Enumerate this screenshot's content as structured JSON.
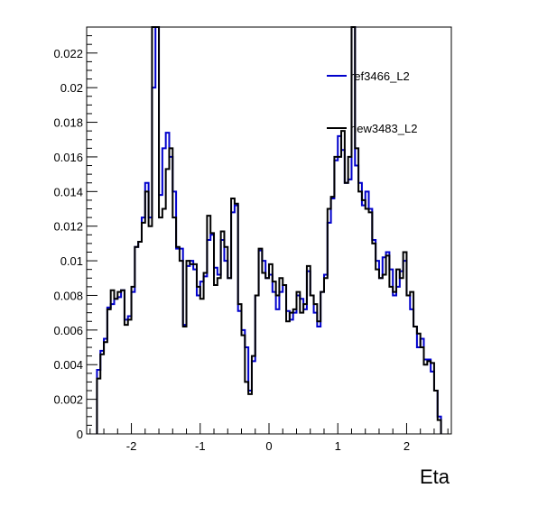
{
  "chart_data": {
    "type": "line",
    "xlabel": "Eta",
    "ylabel": "",
    "xlim": [
      -2.65,
      2.65
    ],
    "ylim": [
      0,
      0.0235
    ],
    "grid": false,
    "legend_position": "top-right",
    "x_ticks": [
      -2,
      -1,
      0,
      1,
      2
    ],
    "x_tick_labels": [
      "-2",
      "-1",
      "0",
      "1",
      "2"
    ],
    "y_ticks": [
      0,
      0.002,
      0.004,
      0.006,
      0.008,
      0.01,
      0.012,
      0.014,
      0.016,
      0.018,
      0.02,
      0.022
    ],
    "y_tick_labels": [
      "0",
      "0.002",
      "0.004",
      "0.006",
      "0.008",
      "0.01",
      "0.012",
      "0.014",
      "0.016",
      "0.018",
      "0.02",
      "0.022"
    ],
    "bins": {
      "start": -2.5,
      "width": 0.05,
      "count": 100
    },
    "series": [
      {
        "name": "ref3466_L2",
        "color": "#0000cc",
        "values": [
          0.0037,
          0.0048,
          0.0055,
          0.0073,
          0.0075,
          0.0078,
          0.0079,
          0.0083,
          0.0066,
          0.0068,
          0.0082,
          0.0108,
          0.0111,
          0.0125,
          0.0145,
          0.0125,
          0.02,
          0.0235,
          0.0138,
          0.0165,
          0.0174,
          0.016,
          0.014,
          0.0107,
          0.0107,
          0.0063,
          0.0097,
          0.01,
          0.0095,
          0.008,
          0.0088,
          0.0091,
          0.0112,
          0.0115,
          0.0096,
          0.0092,
          0.0112,
          0.01,
          0.009,
          0.0128,
          0.0132,
          0.0071,
          0.006,
          0.005,
          0.0025,
          0.0042,
          0.008,
          0.0106,
          0.01,
          0.009,
          0.0092,
          0.0082,
          0.0072,
          0.0082,
          0.0086,
          0.0071,
          0.0066,
          0.007,
          0.008,
          0.0078,
          0.0072,
          0.0094,
          0.008,
          0.007,
          0.0062,
          0.0082,
          0.0092,
          0.0122,
          0.0136,
          0.0158,
          0.0172,
          0.0164,
          0.0145,
          0.0147,
          0.0235,
          0.0155,
          0.0145,
          0.0132,
          0.014,
          0.013,
          0.0112,
          0.01,
          0.009,
          0.0102,
          0.0105,
          0.0095,
          0.008,
          0.0085,
          0.0094,
          0.01,
          0.008,
          0.0072,
          0.0062,
          0.005,
          0.0055,
          0.0043,
          0.0043,
          0.0036,
          0.0025,
          0.001
        ]
      },
      {
        "name": "new3483_L2",
        "color": "#000000",
        "values": [
          0.0032,
          0.0046,
          0.0053,
          0.0072,
          0.0083,
          0.0078,
          0.0082,
          0.0083,
          0.0063,
          0.0066,
          0.0085,
          0.0108,
          0.0111,
          0.0122,
          0.014,
          0.012,
          0.0235,
          0.0235,
          0.0125,
          0.013,
          0.0153,
          0.0165,
          0.0125,
          0.0108,
          0.01,
          0.0062,
          0.01,
          0.0098,
          0.0098,
          0.0085,
          0.0078,
          0.0093,
          0.0126,
          0.0116,
          0.0086,
          0.009,
          0.0117,
          0.0108,
          0.009,
          0.0136,
          0.0133,
          0.0075,
          0.0057,
          0.003,
          0.0023,
          0.0045,
          0.008,
          0.0107,
          0.0093,
          0.009,
          0.0098,
          0.0088,
          0.008,
          0.009,
          0.0086,
          0.0065,
          0.007,
          0.0072,
          0.0082,
          0.007,
          0.0075,
          0.0097,
          0.008,
          0.0075,
          0.0065,
          0.0082,
          0.009,
          0.013,
          0.0137,
          0.016,
          0.016,
          0.0175,
          0.0145,
          0.016,
          0.0235,
          0.0165,
          0.014,
          0.0135,
          0.013,
          0.0128,
          0.011,
          0.0095,
          0.009,
          0.0092,
          0.0103,
          0.0085,
          0.0082,
          0.0095,
          0.009,
          0.0105,
          0.008,
          0.0082,
          0.0062,
          0.0058,
          0.005,
          0.004,
          0.0042,
          0.0041,
          0.0025,
          0.0008
        ]
      }
    ]
  }
}
